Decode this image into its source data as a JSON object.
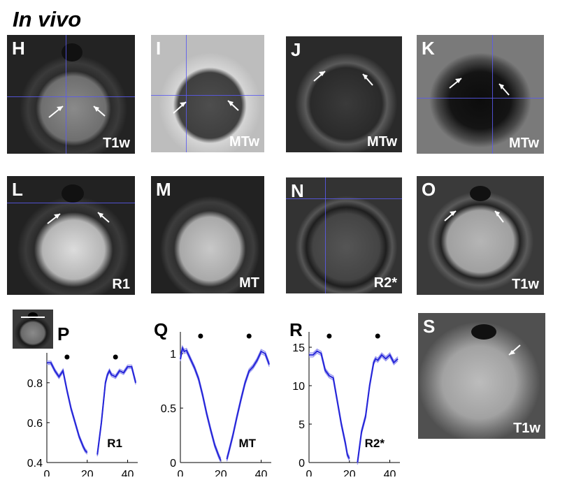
{
  "figure_title": "In vivo",
  "panels": [
    {
      "letter": "H",
      "caption": "T1w"
    },
    {
      "letter": "I",
      "caption": "MTw"
    },
    {
      "letter": "J",
      "caption": "MTw"
    },
    {
      "letter": "K",
      "caption": "MTw"
    },
    {
      "letter": "L",
      "caption": "R1"
    },
    {
      "letter": "M",
      "caption": "MT"
    },
    {
      "letter": "N",
      "caption": "R2*"
    },
    {
      "letter": "O",
      "caption": "T1w"
    },
    {
      "letter": "S",
      "caption": "T1w"
    }
  ],
  "chart_data": [
    {
      "type": "line",
      "panel": "P",
      "annotation": "R1",
      "xlim": [
        0,
        45
      ],
      "ylim": [
        0.4,
        0.95
      ],
      "x_ticks": [
        "0",
        "20",
        "40"
      ],
      "y_ticks": [
        "0.4",
        "0.6",
        "0.8"
      ],
      "series": [
        {
          "x": [
            0,
            2,
            4,
            6,
            8,
            10,
            12,
            14,
            16,
            18,
            19,
            20
          ],
          "y": [
            0.9,
            0.9,
            0.86,
            0.83,
            0.86,
            0.76,
            0.67,
            0.6,
            0.53,
            0.48,
            0.46,
            0.45
          ]
        },
        {
          "x": [
            25,
            26,
            27,
            28,
            29,
            30,
            31,
            32,
            34,
            36,
            38,
            40,
            42,
            44
          ],
          "y": [
            0.44,
            0.52,
            0.6,
            0.7,
            0.8,
            0.84,
            0.86,
            0.84,
            0.83,
            0.86,
            0.85,
            0.88,
            0.88,
            0.8
          ]
        }
      ],
      "dots_x": [
        10,
        34
      ]
    },
    {
      "type": "line",
      "panel": "Q",
      "annotation": "MT",
      "xlim": [
        0,
        45
      ],
      "ylim": [
        0,
        1.2
      ],
      "x_ticks": [
        "0",
        "20",
        "40"
      ],
      "y_ticks": [
        "0",
        "0.5",
        "1"
      ],
      "series": [
        {
          "x": [
            0,
            1,
            2,
            3,
            5,
            7,
            9,
            11,
            13,
            15,
            17,
            19,
            20
          ],
          "y": [
            0.95,
            1.05,
            1.02,
            1.03,
            0.95,
            0.87,
            0.77,
            0.62,
            0.45,
            0.3,
            0.16,
            0.06,
            0.02
          ]
        },
        {
          "x": [
            23,
            24,
            26,
            28,
            30,
            32,
            34,
            36,
            38,
            40,
            42,
            44
          ],
          "y": [
            0.03,
            0.1,
            0.25,
            0.42,
            0.58,
            0.73,
            0.84,
            0.88,
            0.94,
            1.02,
            1.0,
            0.9
          ]
        }
      ],
      "dots_x": [
        10,
        34
      ]
    },
    {
      "type": "line",
      "panel": "R",
      "annotation": "R2*",
      "xlim": [
        0,
        45
      ],
      "ylim": [
        0,
        17
      ],
      "x_ticks": [
        "0",
        "20",
        "40"
      ],
      "y_ticks": [
        "0",
        "5",
        "10",
        "15"
      ],
      "series": [
        {
          "x": [
            0,
            2,
            4,
            6,
            8,
            10,
            12,
            14,
            16,
            18,
            19,
            20
          ],
          "y": [
            14,
            14,
            14.5,
            14.2,
            12,
            11.3,
            11,
            8,
            5,
            2.5,
            1,
            0.5
          ]
        },
        {
          "x": [
            24,
            25,
            26,
            28,
            30,
            32,
            33,
            34,
            36,
            38,
            40,
            42,
            44
          ],
          "y": [
            0,
            2,
            4,
            6,
            10,
            13,
            13.5,
            13.3,
            14,
            13.5,
            14,
            13,
            13.5
          ]
        }
      ],
      "dots_x": [
        10,
        34
      ]
    }
  ]
}
